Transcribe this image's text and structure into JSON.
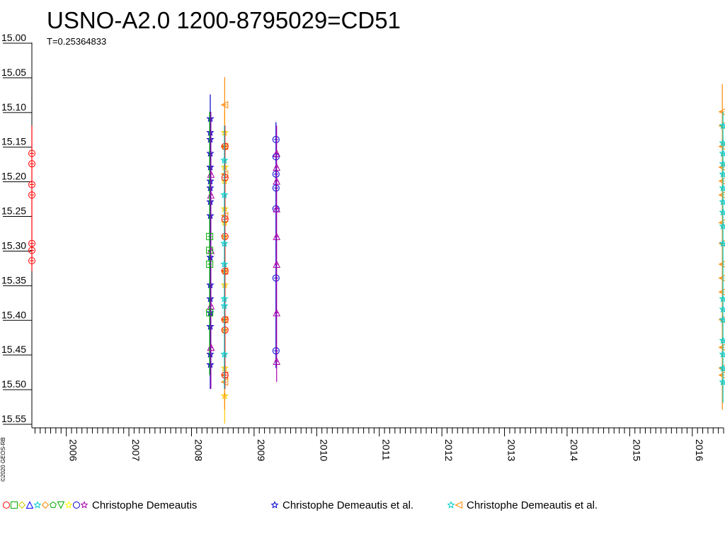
{
  "chart_data": {
    "type": "scatter",
    "title": "USNO-A2.0 1200-8795029=CD51",
    "subtitle": "T=0.25364833",
    "copyright": "©2020 GEOS-RB",
    "y_axis": {
      "min": 15.0,
      "max": 15.55,
      "inverted": true,
      "tick_labels": [
        "15.00",
        "15.05",
        "15.10",
        "15.15",
        "15.20",
        "15.25",
        "15.30",
        "15.35",
        "15.40",
        "15.45",
        "15.50",
        "15.55"
      ]
    },
    "x_axis": {
      "min": 2005.45,
      "max": 2016.5,
      "tick_labels": [
        "2006",
        "2007",
        "2008",
        "2009",
        "2010",
        "2011",
        "2012",
        "2013",
        "2014",
        "2015",
        "2016"
      ]
    },
    "legend": [
      {
        "label": "Christophe Demeautis",
        "markers": [
          "circle",
          "square",
          "diamond",
          "triangle",
          "star",
          "diamond",
          "pentagon",
          "triangle-down",
          "star",
          "circle",
          "star"
        ],
        "colors": [
          "#ff0000",
          "#00aa00",
          "#cccc00",
          "#0000ff",
          "#00cccc",
          "#ff8800",
          "#00aa00",
          "#00aa00",
          "#ffff00",
          "#0000cc",
          "#aa00aa"
        ]
      },
      {
        "label": "Christophe Demeautis et al.",
        "markers": [
          "star"
        ],
        "colors": [
          "#0000cc"
        ]
      },
      {
        "label": "Christophe Demeautis et al.",
        "markers": [
          "star",
          "triangle-left"
        ],
        "colors": [
          "#00cccc",
          "#ff8800"
        ]
      }
    ],
    "series": [
      {
        "color": "#ff0000",
        "marker": "circle",
        "x": 2005.45,
        "y": [
          15.16,
          15.175,
          15.205,
          15.22,
          15.29,
          15.3,
          15.315
        ],
        "bar": [
          15.12,
          15.33
        ]
      },
      {
        "color": "#0000cc",
        "marker": "star",
        "x": 2008.3,
        "y": [
          15.11,
          15.13,
          15.14,
          15.16,
          15.18,
          15.2,
          15.21,
          15.23,
          15.25,
          15.31,
          15.35,
          15.37,
          15.39,
          15.41,
          15.45,
          15.465
        ],
        "bar": [
          15.075,
          15.5
        ]
      },
      {
        "color": "#aa00aa",
        "marker": "triangle",
        "x": 2008.31,
        "y": [
          15.19,
          15.22,
          15.44,
          15.44,
          15.3,
          15.38
        ],
        "bar": [
          15.1,
          15.5
        ]
      },
      {
        "color": "#00aa00",
        "marker": "square",
        "x": 2008.29,
        "y": [
          15.28,
          15.3,
          15.32,
          15.39
        ],
        "bar": [
          15.1,
          15.48
        ]
      },
      {
        "color": "#ffcc00",
        "marker": "star",
        "x": 2008.53,
        "y": [
          15.13,
          15.15,
          15.18,
          15.2,
          15.24,
          15.26,
          15.28,
          15.33,
          15.35,
          15.4,
          15.415,
          15.47,
          15.51
        ],
        "bar": [
          15.1,
          15.55
        ]
      },
      {
        "color": "#ff8800",
        "marker": "triangle-left",
        "x": 2008.53,
        "y": [
          15.09,
          15.15,
          15.19,
          15.25,
          15.33,
          15.4,
          15.49,
          15.48
        ],
        "bar": [
          15.05,
          15.53
        ]
      },
      {
        "color": "#ff0000",
        "marker": "circle",
        "x": 2008.535,
        "y": [
          15.15,
          15.195,
          15.255,
          15.28,
          15.33,
          15.4,
          15.415,
          15.48
        ],
        "bar": [
          15.12,
          15.5
        ]
      },
      {
        "color": "#00cccc",
        "marker": "star",
        "x": 2008.525,
        "y": [
          15.17,
          15.22,
          15.29,
          15.32,
          15.37,
          15.38,
          15.45
        ],
        "bar": [
          15.12,
          15.5
        ]
      },
      {
        "color": "#0000cc",
        "marker": "circle",
        "x": 2009.35,
        "y": [
          15.14,
          15.165,
          15.19,
          15.21,
          15.24,
          15.34,
          15.445
        ],
        "bar": [
          15.115,
          15.47
        ]
      },
      {
        "color": "#aa00aa",
        "marker": "triangle",
        "x": 2009.36,
        "y": [
          15.16,
          15.18,
          15.2,
          15.24,
          15.28,
          15.32,
          15.39,
          15.46
        ],
        "bar": [
          15.12,
          15.49
        ]
      },
      {
        "color": "#ff8800",
        "marker": "triangle-left",
        "x": 2016.48,
        "y": [
          15.1,
          15.12,
          15.15,
          15.18,
          15.2,
          15.22,
          15.26,
          15.29,
          15.32,
          15.34,
          15.36,
          15.4,
          15.44,
          15.47,
          15.48
        ],
        "bar": [
          15.06,
          15.53
        ]
      },
      {
        "color": "#00cccc",
        "marker": "star",
        "x": 2016.49,
        "y": [
          15.12,
          15.145,
          15.16,
          15.175,
          15.19,
          15.21,
          15.23,
          15.245,
          15.265,
          15.29,
          15.37,
          15.385,
          15.4,
          15.43,
          15.45,
          15.47,
          15.49
        ],
        "bar": [
          15.1,
          15.52
        ]
      }
    ]
  }
}
